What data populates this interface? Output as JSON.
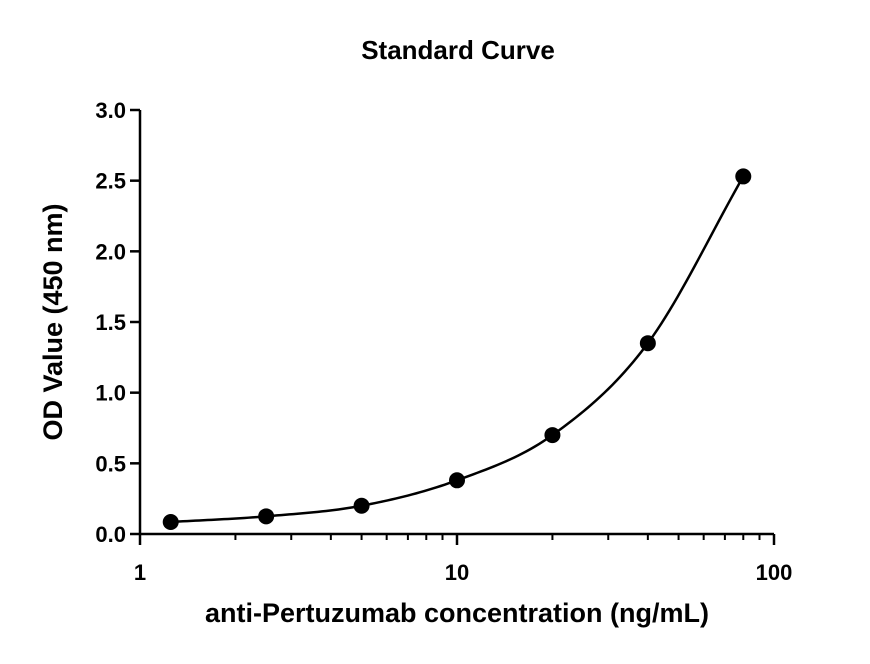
{
  "chart_data": {
    "type": "scatter",
    "title": "Standard Curve",
    "xlabel": "anti-Pertuzumab concentration (ng/mL)",
    "ylabel": "OD Value (450 nm)",
    "x_scale": "log",
    "xlim": [
      1,
      100
    ],
    "ylim": [
      0,
      3.0
    ],
    "x_ticks": [
      1,
      10,
      100
    ],
    "x_tick_labels": [
      "1",
      "10",
      "100"
    ],
    "y_ticks": [
      0,
      0.5,
      1.0,
      1.5,
      2.0,
      2.5,
      3.0
    ],
    "y_tick_labels": [
      "0.0",
      "0.5",
      "1.0",
      "1.5",
      "2.0",
      "2.5",
      "3.0"
    ],
    "grid": false,
    "legend": "none",
    "series": [
      {
        "x": [
          1.25,
          2.5,
          5,
          10,
          20,
          40,
          80
        ],
        "y": [
          0.085,
          0.125,
          0.2,
          0.38,
          0.7,
          1.35,
          2.53
        ],
        "marker": "filled-circle",
        "fit_curve": true,
        "color": "#000000"
      }
    ]
  }
}
